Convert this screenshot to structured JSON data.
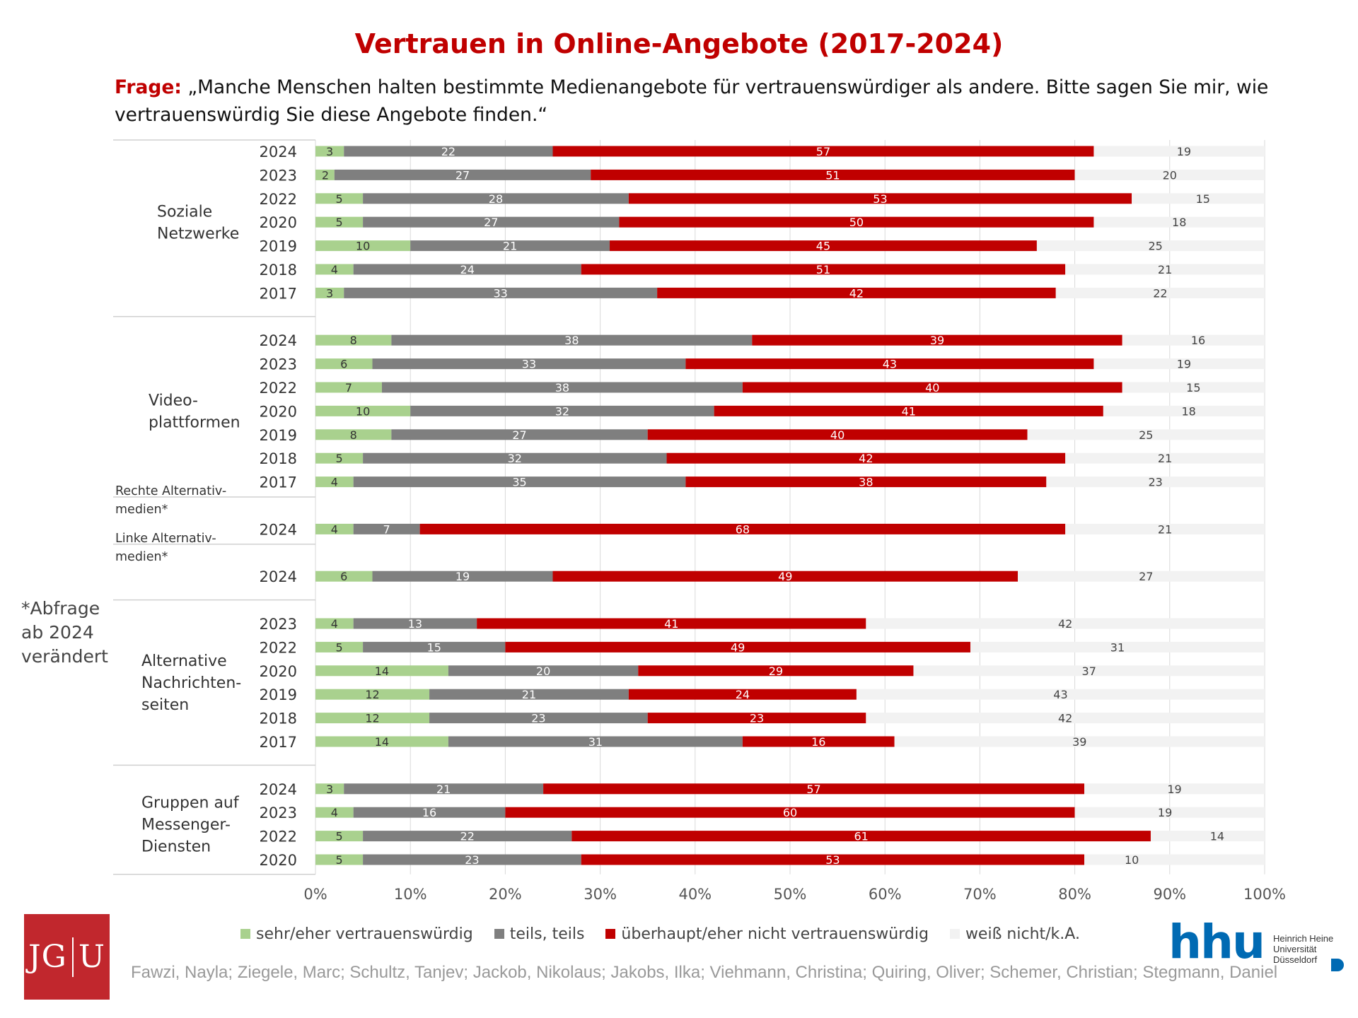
{
  "title": "Vertrauen in Online-Angebote (2017-2024)",
  "question": {
    "label": "Frage:",
    "text": "„Manche Menschen halten bestimmte Medienangebote für vertrauenswürdiger als andere. Bitte sagen Sie mir, wie vertrauenswürdig Sie diese Angebote finden.“"
  },
  "footnote": "*Abfrage ab 2024 verändert",
  "authors": "Fawzi, Nayla; Ziegele, Marc; Schultz, Tanjev; Jackob, Nikolaus; Jakobs, Ilka; Viehmann, Christina; Quiring, Oliver; Schemer, Christian; Stegmann, Daniel",
  "logos": {
    "jgu_left": "JG",
    "jgu_right": "U",
    "hhu": "hhu",
    "hhu_name": [
      "Heinrich Heine",
      "Universität",
      "Düsseldorf"
    ]
  },
  "colors": {
    "trust": "#a9d18e",
    "partly": "#7f7f7f",
    "distrust": "#c00000",
    "dontknow": "#f2f2f2",
    "title": "#c00000"
  },
  "chart_data": {
    "type": "bar",
    "orientation": "horizontal",
    "stacked": true,
    "xlim": [
      0,
      100
    ],
    "x_ticks": [
      "0%",
      "10%",
      "20%",
      "30%",
      "40%",
      "50%",
      "60%",
      "70%",
      "80%",
      "90%",
      "100%"
    ],
    "grid": true,
    "legend_position": "bottom",
    "series": [
      {
        "name": "sehr/eher vertrauenswürdig",
        "key": "trust"
      },
      {
        "name": "teils, teils",
        "key": "partly"
      },
      {
        "name": "überhaupt/eher nicht vertrauenswürdig",
        "key": "distrust"
      },
      {
        "name": "weiß nicht/k.A.",
        "key": "dontknow"
      }
    ],
    "groups": [
      {
        "label": "Soziale Netzwerke",
        "label_lines": [
          "Soziale",
          "Netzwerke"
        ],
        "rows": [
          {
            "year": "2024",
            "values": [
              3,
              22,
              57,
              19
            ]
          },
          {
            "year": "2023",
            "values": [
              2,
              27,
              51,
              20
            ]
          },
          {
            "year": "2022",
            "values": [
              5,
              28,
              53,
              15
            ]
          },
          {
            "year": "2020",
            "values": [
              5,
              27,
              50,
              18
            ]
          },
          {
            "year": "2019",
            "values": [
              10,
              21,
              45,
              25
            ]
          },
          {
            "year": "2018",
            "values": [
              4,
              24,
              51,
              21
            ]
          },
          {
            "year": "2017",
            "values": [
              3,
              33,
              42,
              22
            ]
          }
        ]
      },
      {
        "label": "Video-plattformen",
        "label_lines": [
          "Video-",
          "plattformen"
        ],
        "rows": [
          {
            "year": "2024",
            "values": [
              8,
              38,
              39,
              16
            ]
          },
          {
            "year": "2023",
            "values": [
              6,
              33,
              43,
              19
            ]
          },
          {
            "year": "2022",
            "values": [
              7,
              38,
              40,
              15
            ]
          },
          {
            "year": "2020",
            "values": [
              10,
              32,
              41,
              18
            ]
          },
          {
            "year": "2019",
            "values": [
              8,
              27,
              40,
              25
            ]
          },
          {
            "year": "2018",
            "values": [
              5,
              32,
              42,
              21
            ]
          },
          {
            "year": "2017",
            "values": [
              4,
              35,
              38,
              23
            ]
          }
        ]
      },
      {
        "label": "Rechte Alternativ-medien*",
        "label_lines": [
          "Rechte Alternativ-",
          "medien*"
        ],
        "rows": [
          {
            "year": "2024",
            "values": [
              4,
              7,
              68,
              21
            ]
          }
        ]
      },
      {
        "label": "Linke Alternativ-medien*",
        "label_lines": [
          "Linke Alternativ-",
          "medien*"
        ],
        "rows": [
          {
            "year": "2024",
            "values": [
              6,
              19,
              49,
              27
            ]
          }
        ]
      },
      {
        "label": "Alternative Nachrichten-seiten",
        "label_lines": [
          "Alternative",
          "Nachrichten-",
          "seiten"
        ],
        "rows": [
          {
            "year": "2023",
            "values": [
              4,
              13,
              41,
              42
            ]
          },
          {
            "year": "2022",
            "values": [
              5,
              15,
              49,
              31
            ]
          },
          {
            "year": "2020",
            "values": [
              14,
              20,
              29,
              37
            ]
          },
          {
            "year": "2019",
            "values": [
              12,
              21,
              24,
              43
            ]
          },
          {
            "year": "2018",
            "values": [
              12,
              23,
              23,
              42
            ]
          },
          {
            "year": "2017",
            "values": [
              14,
              31,
              16,
              39
            ]
          }
        ]
      },
      {
        "label": "Gruppen auf Messenger-Diensten",
        "label_lines": [
          "Gruppen auf",
          "Messenger-",
          "Diensten"
        ],
        "rows": [
          {
            "year": "2024",
            "values": [
              3,
              21,
              57,
              19
            ]
          },
          {
            "year": "2023",
            "values": [
              4,
              16,
              60,
              19
            ]
          },
          {
            "year": "2022",
            "values": [
              5,
              22,
              61,
              14
            ]
          },
          {
            "year": "2020",
            "values": [
              5,
              23,
              53,
              10
            ]
          }
        ]
      }
    ]
  }
}
